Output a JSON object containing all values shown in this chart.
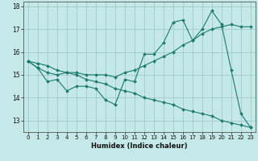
{
  "xlabel": "Humidex (Indice chaleur)",
  "ylabel": "",
  "xlim": [
    -0.5,
    23.5
  ],
  "ylim": [
    12.5,
    18.2
  ],
  "yticks": [
    13,
    14,
    15,
    16,
    17,
    18
  ],
  "xticks": [
    0,
    1,
    2,
    3,
    4,
    5,
    6,
    7,
    8,
    9,
    10,
    11,
    12,
    13,
    14,
    15,
    16,
    17,
    18,
    19,
    20,
    21,
    22,
    23
  ],
  "bg_color": "#c5e8e8",
  "grid_color": "#a0cccc",
  "line_color": "#1a7a6e",
  "series": [
    [
      15.6,
      15.3,
      14.7,
      14.8,
      14.3,
      14.5,
      14.5,
      14.4,
      13.9,
      13.7,
      14.8,
      14.7,
      15.9,
      15.9,
      16.4,
      17.3,
      17.4,
      16.5,
      17.0,
      17.8,
      17.2,
      15.2,
      13.3,
      12.7
    ],
    [
      15.6,
      15.3,
      15.1,
      15.0,
      15.1,
      15.1,
      15.0,
      15.0,
      15.0,
      14.9,
      15.1,
      15.2,
      15.4,
      15.6,
      15.8,
      16.0,
      16.3,
      16.5,
      16.8,
      17.0,
      17.1,
      17.2,
      17.1,
      17.1
    ],
    [
      15.6,
      15.5,
      15.4,
      15.2,
      15.1,
      15.0,
      14.8,
      14.7,
      14.6,
      14.4,
      14.3,
      14.2,
      14.0,
      13.9,
      13.8,
      13.7,
      13.5,
      13.4,
      13.3,
      13.2,
      13.0,
      12.9,
      12.8,
      12.7
    ]
  ]
}
